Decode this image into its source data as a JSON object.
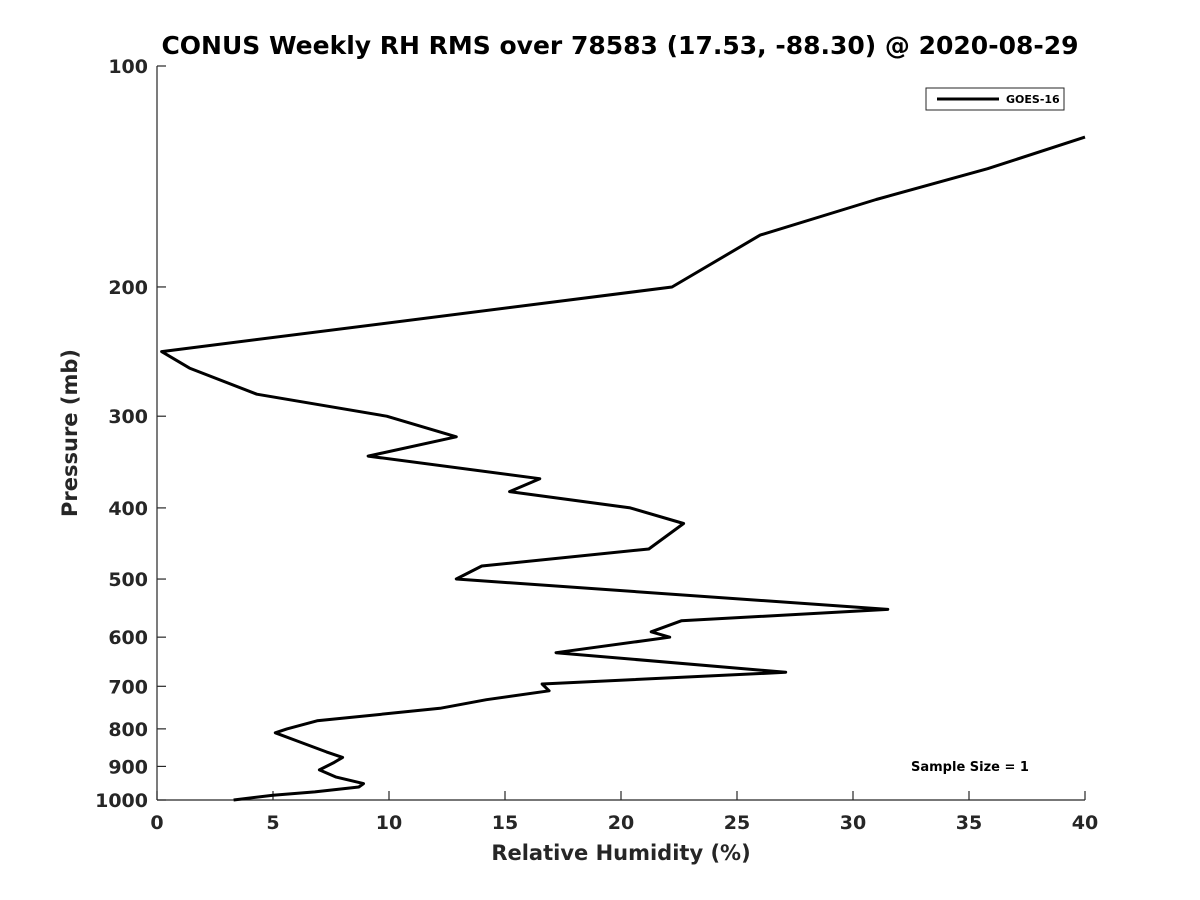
{
  "chart_data": {
    "type": "line",
    "title": "CONUS Weekly RH RMS over 78583 (17.53, -88.30) @ 2020-08-29",
    "xlabel": "Relative Humidity (%)",
    "ylabel": "Pressure (mb)",
    "xlim": [
      0,
      40
    ],
    "ylim": [
      100,
      1000
    ],
    "y_scale": "log",
    "y_reversed": true,
    "grid": false,
    "legend_position": "top-right",
    "x_ticks": [
      0,
      5,
      10,
      15,
      20,
      25,
      30,
      35,
      40
    ],
    "x_tick_labels": [
      "0",
      "5",
      "10",
      "15",
      "20",
      "25",
      "30",
      "35",
      "40"
    ],
    "y_ticks": [
      100,
      200,
      300,
      400,
      500,
      600,
      700,
      800,
      900,
      1000
    ],
    "y_tick_labels": [
      "100",
      "200",
      "300",
      "400",
      "500",
      "600",
      "700",
      "800",
      "900",
      "1000"
    ],
    "series": [
      {
        "name": "GOES-16",
        "color": "#000000",
        "points": [
          [
            40.0,
            125
          ],
          [
            35.8,
            138
          ],
          [
            31.0,
            152
          ],
          [
            26.0,
            170
          ],
          [
            22.2,
            200
          ],
          [
            0.2,
            245
          ],
          [
            1.4,
            258
          ],
          [
            4.3,
            280
          ],
          [
            9.9,
            300
          ],
          [
            12.9,
            320
          ],
          [
            9.1,
            340
          ],
          [
            16.5,
            365
          ],
          [
            15.2,
            380
          ],
          [
            20.4,
            400
          ],
          [
            22.7,
            420
          ],
          [
            21.2,
            455
          ],
          [
            14.0,
            480
          ],
          [
            12.9,
            500
          ],
          [
            31.5,
            550
          ],
          [
            22.6,
            570
          ],
          [
            21.3,
            590
          ],
          [
            22.1,
            600
          ],
          [
            17.2,
            630
          ],
          [
            27.1,
            670
          ],
          [
            16.6,
            695
          ],
          [
            16.9,
            710
          ],
          [
            14.2,
            730
          ],
          [
            12.2,
            750
          ],
          [
            6.9,
            780
          ],
          [
            5.6,
            800
          ],
          [
            5.1,
            810
          ],
          [
            6.0,
            830
          ],
          [
            7.3,
            860
          ],
          [
            8.0,
            875
          ],
          [
            7.6,
            890
          ],
          [
            7.0,
            910
          ],
          [
            7.7,
            930
          ],
          [
            8.9,
            950
          ],
          [
            8.7,
            960
          ],
          [
            6.8,
            975
          ],
          [
            5.0,
            985
          ],
          [
            3.3,
            1000
          ]
        ]
      }
    ],
    "annotations": [
      "Sample Size = 1"
    ]
  }
}
